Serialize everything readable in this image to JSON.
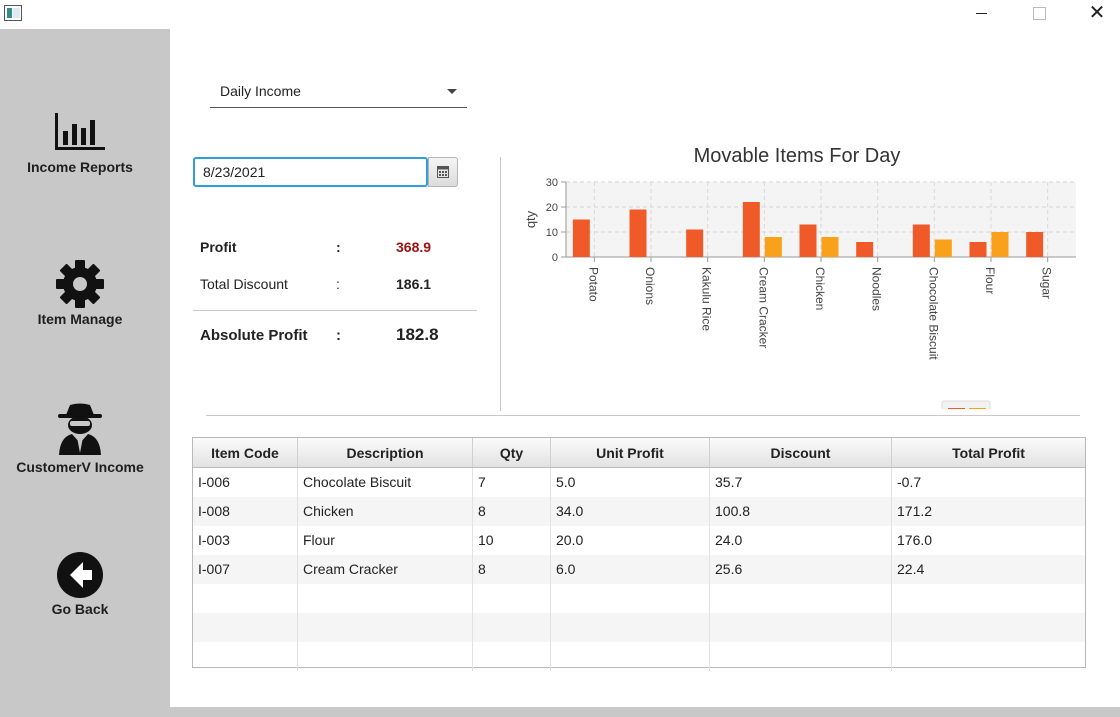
{
  "window": {
    "close_glyph": "✕"
  },
  "sidebar": {
    "items": [
      {
        "label": "Income Reports",
        "icon": "bar-chart-icon"
      },
      {
        "label": "Item Manage",
        "icon": "gear-icon"
      },
      {
        "label": "CustomerV Income",
        "icon": "spy-agent-icon"
      },
      {
        "label": "Go Back",
        "icon": "back-arrow-icon"
      }
    ]
  },
  "report_selector": {
    "value": "Daily Income"
  },
  "date_picker": {
    "value": "8/23/2021",
    "icon": "calendar-icon"
  },
  "summary": {
    "profit_label": "Profit",
    "profit_colon": ":",
    "profit_value": "368.9",
    "profit_color": "#a01010",
    "discount_label": "Total Discount",
    "discount_colon": ":",
    "discount_value": "186.1",
    "absolute_label": "Absolute Profit",
    "absolute_colon": ":",
    "absolute_value": "182.8"
  },
  "chart_data": {
    "type": "bar",
    "title": "Movable Items For Day",
    "ylabel": "qty",
    "xlabel": "",
    "ylim": [
      0,
      30
    ],
    "yticks": [
      0,
      10,
      20,
      30
    ],
    "grid": true,
    "legend": "bottom-center",
    "categories": [
      "Potato",
      "Onions",
      "Kakulu Rice",
      "Cream Cracker",
      "Chicken",
      "Noodles",
      "Chocolate Biscuit",
      "Flour",
      "Sugar"
    ],
    "series": [
      {
        "color": "#f05a28",
        "values": [
          15,
          19,
          11,
          22,
          13,
          6,
          13,
          6,
          10
        ]
      },
      {
        "color": "#f9a11b",
        "values": [
          null,
          null,
          null,
          8,
          8,
          null,
          7,
          10,
          null
        ]
      }
    ]
  },
  "table": {
    "headers": [
      "Item Code",
      "Description",
      "Qty",
      "Unit Profit",
      "Discount",
      "Total Profit"
    ],
    "rows": [
      [
        "I-006",
        "Chocolate Biscuit",
        "7",
        "5.0",
        "35.7",
        "-0.7"
      ],
      [
        "I-008",
        "Chicken",
        "8",
        "34.0",
        "100.8",
        "171.2"
      ],
      [
        "I-003",
        "Flour",
        "10",
        "20.0",
        "24.0",
        "176.0"
      ],
      [
        "I-007",
        "Cream Cracker",
        "8",
        "6.0",
        "25.6",
        "22.4"
      ]
    ],
    "empty_rows": 3
  }
}
